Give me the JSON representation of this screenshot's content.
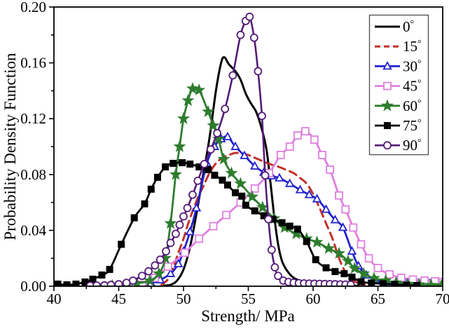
{
  "chart_data": {
    "type": "line",
    "title": "",
    "xlabel": "Strength/ MPa",
    "ylabel": "Probability Density Function",
    "xlim": [
      40,
      70
    ],
    "ylim": [
      0,
      0.2
    ],
    "grid": false,
    "x_ticks": {
      "values": [
        40,
        45,
        50,
        55,
        60,
        65,
        70
      ],
      "labels": [
        "40",
        "45",
        "50",
        "55",
        "60",
        "65",
        "70"
      ],
      "minor_step": 2.5
    },
    "y_ticks": {
      "values": [
        0,
        0.04,
        0.08,
        0.12,
        0.16,
        0.2
      ],
      "labels": [
        "0.00",
        "0.04",
        "0.08",
        "0.12",
        "0.16",
        "0.20"
      ],
      "minor_step": 0.02
    },
    "legend": {
      "position": "top-right",
      "border_color": "#555555",
      "background": "#ffffff"
    },
    "series": [
      {
        "label": "0°",
        "key": "0deg",
        "color": "#000000",
        "line_width": 3,
        "dash": null,
        "marker": "none",
        "marker_size": 0,
        "points": [
          [
            48.5,
            0.0005
          ],
          [
            49,
            0.001
          ],
          [
            49.5,
            0.004
          ],
          [
            50,
            0.012
          ],
          [
            50.5,
            0.028
          ],
          [
            51,
            0.052
          ],
          [
            51.5,
            0.079
          ],
          [
            52,
            0.106
          ],
          [
            52.5,
            0.14
          ],
          [
            52.9,
            0.16
          ],
          [
            53.15,
            0.164
          ],
          [
            53.5,
            0.159
          ],
          [
            54,
            0.154
          ],
          [
            54.4,
            0.148
          ],
          [
            54.8,
            0.138
          ],
          [
            55.2,
            0.131
          ],
          [
            55.6,
            0.125
          ],
          [
            56,
            0.114
          ],
          [
            56.4,
            0.098
          ],
          [
            56.7,
            0.075
          ],
          [
            57,
            0.05
          ],
          [
            57.3,
            0.03
          ],
          [
            57.6,
            0.018
          ],
          [
            58,
            0.011
          ],
          [
            58.5,
            0.006
          ],
          [
            59,
            0.004
          ],
          [
            59.6,
            0.002
          ],
          [
            60.5,
            0.001
          ],
          [
            62,
            0.0005
          ],
          [
            63.5,
            0.0003
          ]
        ]
      },
      {
        "label": "15°",
        "key": "15deg",
        "color": "#c23028",
        "line_width": 3,
        "dash": "11 7",
        "marker": "none",
        "marker_size": 0,
        "points": [
          [
            48.3,
            0.001
          ],
          [
            48.8,
            0.005
          ],
          [
            49.2,
            0.013
          ],
          [
            49.6,
            0.024
          ],
          [
            50,
            0.034
          ],
          [
            50.4,
            0.046
          ],
          [
            51,
            0.061
          ],
          [
            51.5,
            0.071
          ],
          [
            52,
            0.081
          ],
          [
            52.5,
            0.088
          ],
          [
            53,
            0.092
          ],
          [
            53.5,
            0.094
          ],
          [
            54,
            0.0955
          ],
          [
            54.5,
            0.095
          ],
          [
            55,
            0.094
          ],
          [
            55.5,
            0.092
          ],
          [
            56,
            0.09
          ],
          [
            56.5,
            0.088
          ],
          [
            57,
            0.0865
          ],
          [
            57.5,
            0.085
          ],
          [
            58,
            0.083
          ],
          [
            58.5,
            0.081
          ],
          [
            59,
            0.0775
          ],
          [
            59.5,
            0.0735
          ],
          [
            60,
            0.066
          ],
          [
            60.5,
            0.056
          ],
          [
            61,
            0.045
          ],
          [
            61.5,
            0.034
          ],
          [
            62,
            0.02
          ],
          [
            62.5,
            0.01
          ],
          [
            63,
            0.005
          ],
          [
            63.5,
            0.002
          ],
          [
            64,
            0.001
          ]
        ]
      },
      {
        "label": "30°",
        "key": "30deg",
        "color": "#2222cc",
        "line_width": 2.8,
        "dash": null,
        "marker": "triangle-open",
        "marker_size": 5.5,
        "points": [
          [
            47.5,
            0.002
          ],
          [
            48.2,
            0.0045
          ],
          [
            49,
            0.009
          ],
          [
            49.6,
            0.016
          ],
          [
            50,
            0.025
          ],
          [
            50.5,
            0.039
          ],
          [
            51,
            0.056
          ],
          [
            51.8,
            0.088
          ],
          [
            52.4,
            0.1
          ],
          [
            52.9,
            0.1055
          ],
          [
            53.4,
            0.107
          ],
          [
            54,
            0.1
          ],
          [
            54.7,
            0.0935
          ],
          [
            55.5,
            0.086
          ],
          [
            56.2,
            0.0815
          ],
          [
            56.8,
            0.079
          ],
          [
            57.4,
            0.0775
          ],
          [
            58.2,
            0.0735
          ],
          [
            59,
            0.069
          ],
          [
            59.7,
            0.0655
          ],
          [
            60.3,
            0.0625
          ],
          [
            61,
            0.055
          ],
          [
            61.7,
            0.0475
          ],
          [
            62.3,
            0.042
          ],
          [
            63,
            0.025
          ],
          [
            63.5,
            0.0145
          ],
          [
            64.1,
            0.008
          ],
          [
            64.8,
            0.0045
          ],
          [
            65.6,
            0.003
          ],
          [
            66.4,
            0.0028
          ],
          [
            67.2,
            0.0027
          ],
          [
            68.1,
            0.0022
          ],
          [
            69,
            0.002
          ],
          [
            69.8,
            0.0015
          ]
        ]
      },
      {
        "label": "45°",
        "key": "45deg",
        "color": "#df7fdf",
        "line_width": 2.8,
        "dash": null,
        "marker": "square-open",
        "marker_size": 5,
        "points": [
          [
            46.8,
            0.001
          ],
          [
            47.8,
            0.006
          ],
          [
            48.8,
            0.014
          ],
          [
            50.1,
            0.024
          ],
          [
            51.2,
            0.034
          ],
          [
            52.3,
            0.043
          ],
          [
            53.3,
            0.051
          ],
          [
            54.4,
            0.06
          ],
          [
            55.5,
            0.07
          ],
          [
            56.6,
            0.081
          ],
          [
            57.5,
            0.094
          ],
          [
            58.2,
            0.1
          ],
          [
            58.8,
            0.108
          ],
          [
            59.4,
            0.111
          ],
          [
            60.1,
            0.105
          ],
          [
            60.7,
            0.094
          ],
          [
            61.3,
            0.0835
          ],
          [
            62,
            0.065
          ],
          [
            62.5,
            0.055
          ],
          [
            63.1,
            0.042
          ],
          [
            63.7,
            0.03
          ],
          [
            64.3,
            0.02
          ],
          [
            65,
            0.013
          ],
          [
            65.9,
            0.0085
          ],
          [
            66.8,
            0.006
          ],
          [
            67.7,
            0.0048
          ],
          [
            68.6,
            0.004
          ],
          [
            69.4,
            0.0035
          ],
          [
            70,
            0.003
          ]
        ]
      },
      {
        "label": "60°",
        "key": "60deg",
        "color": "#2e7d2e",
        "line_width": 2.8,
        "dash": null,
        "marker": "star",
        "marker_size": 7,
        "points": [
          [
            44.5,
            0.0005
          ],
          [
            45.5,
            0.001
          ],
          [
            46.4,
            0.002
          ],
          [
            47.4,
            0.004
          ],
          [
            48.1,
            0.009
          ],
          [
            48.6,
            0.02
          ],
          [
            49,
            0.045
          ],
          [
            49.4,
            0.08
          ],
          [
            49.7,
            0.1
          ],
          [
            50,
            0.12
          ],
          [
            50.35,
            0.133
          ],
          [
            50.7,
            0.1415
          ],
          [
            51.2,
            0.1405
          ],
          [
            51.9,
            0.125
          ],
          [
            52.3,
            0.115
          ],
          [
            52.7,
            0.1055
          ],
          [
            53.1,
            0.091
          ],
          [
            53.7,
            0.081
          ],
          [
            54.4,
            0.0735
          ],
          [
            55.3,
            0.064
          ],
          [
            56.1,
            0.0565
          ],
          [
            57,
            0.0485
          ],
          [
            57.8,
            0.042
          ],
          [
            58.7,
            0.0375
          ],
          [
            59.5,
            0.034
          ],
          [
            60.3,
            0.0315
          ],
          [
            61.2,
            0.027
          ],
          [
            62,
            0.0235
          ],
          [
            62.7,
            0.018
          ],
          [
            63.2,
            0.0128
          ],
          [
            63.9,
            0.009
          ],
          [
            64.7,
            0.0057
          ],
          [
            65.6,
            0.004
          ],
          [
            66.4,
            0.0025
          ],
          [
            67.3,
            0.0016
          ],
          [
            68.2,
            0.0012
          ],
          [
            69.1,
            0.0008
          ],
          [
            69.9,
            0.0006
          ]
        ]
      },
      {
        "label": "75°",
        "key": "75deg",
        "color": "#000000",
        "line_width": 2.8,
        "dash": null,
        "marker": "square-filled",
        "marker_size": 5,
        "points": [
          [
            40.3,
            0.0015
          ],
          [
            41,
            0.001
          ],
          [
            41.7,
            0.0015
          ],
          [
            42.4,
            0.003
          ],
          [
            43,
            0.005
          ],
          [
            43.7,
            0.008
          ],
          [
            44.3,
            0.012
          ],
          [
            45.2,
            0.03
          ],
          [
            46.2,
            0.049
          ],
          [
            47,
            0.059
          ],
          [
            47.5,
            0.0695
          ],
          [
            48,
            0.078
          ],
          [
            48.6,
            0.0855
          ],
          [
            49.2,
            0.088
          ],
          [
            49.9,
            0.0885
          ],
          [
            50.5,
            0.0875
          ],
          [
            51.2,
            0.0855
          ],
          [
            51.9,
            0.0835
          ],
          [
            52.4,
            0.0795
          ],
          [
            53,
            0.076
          ],
          [
            53.4,
            0.0725
          ],
          [
            54,
            0.067
          ],
          [
            54.5,
            0.0645
          ],
          [
            54.8,
            0.058
          ],
          [
            55.5,
            0.054
          ],
          [
            56.2,
            0.0505
          ],
          [
            56.9,
            0.048
          ],
          [
            57.6,
            0.0455
          ],
          [
            58.2,
            0.043
          ],
          [
            58.8,
            0.0409
          ],
          [
            59.5,
            0.032
          ],
          [
            60.2,
            0.019
          ],
          [
            61,
            0.0132
          ],
          [
            61.7,
            0.0105
          ],
          [
            62.4,
            0.009
          ],
          [
            63,
            0.0065
          ],
          [
            63.7,
            0.0032
          ],
          [
            64.5,
            0.0023
          ],
          [
            65.4,
            0.0018
          ],
          [
            66.3,
            0.0012
          ],
          [
            67.2,
            0.0008
          ],
          [
            68,
            0.0005
          ]
        ]
      },
      {
        "label": "90°",
        "key": "90deg",
        "color": "#551a78",
        "line_width": 2.6,
        "dash": null,
        "marker": "circle-open",
        "marker_size": 5,
        "points": [
          [
            42.8,
            0.0004
          ],
          [
            43.3,
            0.0005
          ],
          [
            43.9,
            0.0006
          ],
          [
            44.4,
            0.0009
          ],
          [
            45,
            0.0014
          ],
          [
            45.6,
            0.0024
          ],
          [
            46.1,
            0.004
          ],
          [
            46.8,
            0.0074
          ],
          [
            47.3,
            0.0107
          ],
          [
            47.8,
            0.0149
          ],
          [
            48.2,
            0.019
          ],
          [
            48.65,
            0.025
          ],
          [
            49,
            0.031
          ],
          [
            49.4,
            0.0375
          ],
          [
            49.7,
            0.044
          ],
          [
            50,
            0.05
          ],
          [
            50.3,
            0.056
          ],
          [
            50.7,
            0.0655
          ],
          [
            51.1,
            0.0755
          ],
          [
            51.6,
            0.0875
          ],
          [
            52.1,
            0.098
          ],
          [
            52.6,
            0.1096
          ],
          [
            53.2,
            0.127
          ],
          [
            53.8,
            0.151
          ],
          [
            54.4,
            0.18
          ],
          [
            54.8,
            0.19
          ],
          [
            55.1,
            0.193
          ],
          [
            55.45,
            0.178
          ],
          [
            55.75,
            0.154
          ],
          [
            56.05,
            0.122
          ],
          [
            56.3,
            0.0794
          ],
          [
            56.55,
            0.048
          ],
          [
            56.8,
            0.026
          ],
          [
            57.05,
            0.0135
          ],
          [
            57.3,
            0.0074
          ],
          [
            57.7,
            0.004
          ],
          [
            58.1,
            0.003
          ],
          [
            58.5,
            0.0025
          ],
          [
            58.9,
            0.0022
          ],
          [
            59.3,
            0.002
          ],
          [
            59.7,
            0.0019
          ],
          [
            60.1,
            0.0018
          ],
          [
            60.5,
            0.0017
          ],
          [
            60.9,
            0.0016
          ],
          [
            61.3,
            0.0015
          ],
          [
            61.7,
            0.0014
          ],
          [
            62.1,
            0.0013
          ],
          [
            62.5,
            0.0012
          ],
          [
            62.9,
            0.0011
          ]
        ]
      }
    ]
  }
}
